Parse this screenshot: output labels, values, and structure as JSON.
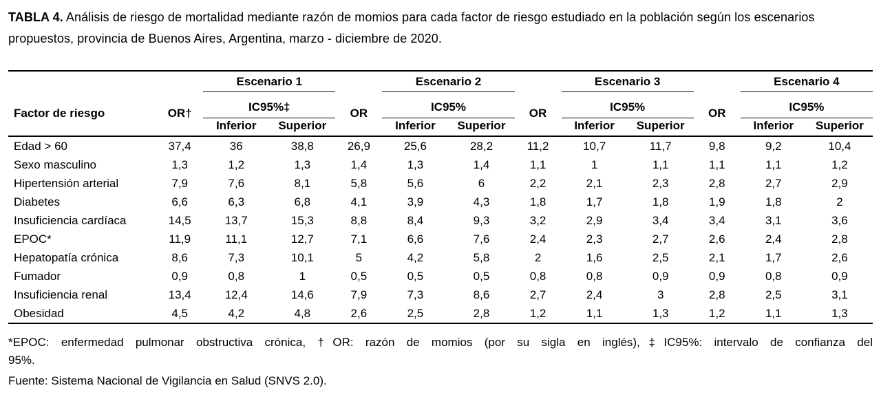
{
  "page": {
    "background": "#ffffff",
    "text_color": "#000000"
  },
  "title": {
    "label": "TABLA 4.",
    "text": "Análisis de riesgo de mortalidad mediante razón de momios para cada factor de riesgo estudiado en la población según los escenarios propuestos, provincia de Buenos Aires, Argentina, marzo - diciembre de 2020."
  },
  "table": {
    "factor_header": "Factor de riesgo",
    "sub_headers": {
      "inferior": "Inferior",
      "superior": "Superior"
    },
    "scenarios": [
      {
        "name": "Escenario 1",
        "or_label": "OR†",
        "ic_label": "IC95%‡"
      },
      {
        "name": "Escenario 2",
        "or_label": "OR",
        "ic_label": "IC95%"
      },
      {
        "name": "Escenario 3",
        "or_label": "OR",
        "ic_label": "IC95%"
      },
      {
        "name": "Escenario 4",
        "or_label": "OR",
        "ic_label": "IC95%"
      }
    ],
    "rows": [
      {
        "factor": "Edad > 60",
        "values": [
          "37,4",
          "36",
          "38,8",
          "26,9",
          "25,6",
          "28,2",
          "11,2",
          "10,7",
          "11,7",
          "9,8",
          "9,2",
          "10,4"
        ]
      },
      {
        "factor": "Sexo masculino",
        "values": [
          "1,3",
          "1,2",
          "1,3",
          "1,4",
          "1,3",
          "1,4",
          "1,1",
          "1",
          "1,1",
          "1,1",
          "1,1",
          "1,2"
        ]
      },
      {
        "factor": "Hipertensión arterial",
        "values": [
          "7,9",
          "7,6",
          "8,1",
          "5,8",
          "5,6",
          "6",
          "2,2",
          "2,1",
          "2,3",
          "2,8",
          "2,7",
          "2,9"
        ]
      },
      {
        "factor": "Diabetes",
        "values": [
          "6,6",
          "6,3",
          "6,8",
          "4,1",
          "3,9",
          "4,3",
          "1,8",
          "1,7",
          "1,8",
          "1,9",
          "1,8",
          "2"
        ]
      },
      {
        "factor": "Insuficiencia cardíaca",
        "values": [
          "14,5",
          "13,7",
          "15,3",
          "8,8",
          "8,4",
          "9,3",
          "3,2",
          "2,9",
          "3,4",
          "3,4",
          "3,1",
          "3,6"
        ]
      },
      {
        "factor": "EPOC*",
        "values": [
          "11,9",
          "11,1",
          "12,7",
          "7,1",
          "6,6",
          "7,6",
          "2,4",
          "2,3",
          "2,7",
          "2,6",
          "2,4",
          "2,8"
        ]
      },
      {
        "factor": "Hepatopatía crónica",
        "values": [
          "8,6",
          "7,3",
          "10,1",
          "5",
          "4,2",
          "5,8",
          "2",
          "1,6",
          "2,5",
          "2,1",
          "1,7",
          "2,6"
        ]
      },
      {
        "factor": "Fumador",
        "values": [
          "0,9",
          "0,8",
          "1",
          "0,5",
          "0,5",
          "0,5",
          "0,8",
          "0,8",
          "0,9",
          "0,9",
          "0,8",
          "0,9"
        ]
      },
      {
        "factor": "Insuficiencia renal",
        "values": [
          "13,4",
          "12,4",
          "14,6",
          "7,9",
          "7,3",
          "8,6",
          "2,7",
          "2,4",
          "3",
          "2,8",
          "2,5",
          "3,1"
        ]
      },
      {
        "factor": "Obesidad",
        "values": [
          "4,5",
          "4,2",
          "4,8",
          "2,6",
          "2,5",
          "2,8",
          "1,2",
          "1,1",
          "1,3",
          "1,2",
          "1,1",
          "1,3"
        ]
      }
    ]
  },
  "footnotes": {
    "definitions_line1": "*EPOC: enfermedad pulmonar obstructiva crónica, †OR: razón de momios (por su sigla en inglés),‡IC95%: intervalo de confianza del",
    "definitions_line2": "95%.",
    "source": "Fuente: Sistema Nacional de Vigilancia en Salud (SNVS 2.0)."
  }
}
